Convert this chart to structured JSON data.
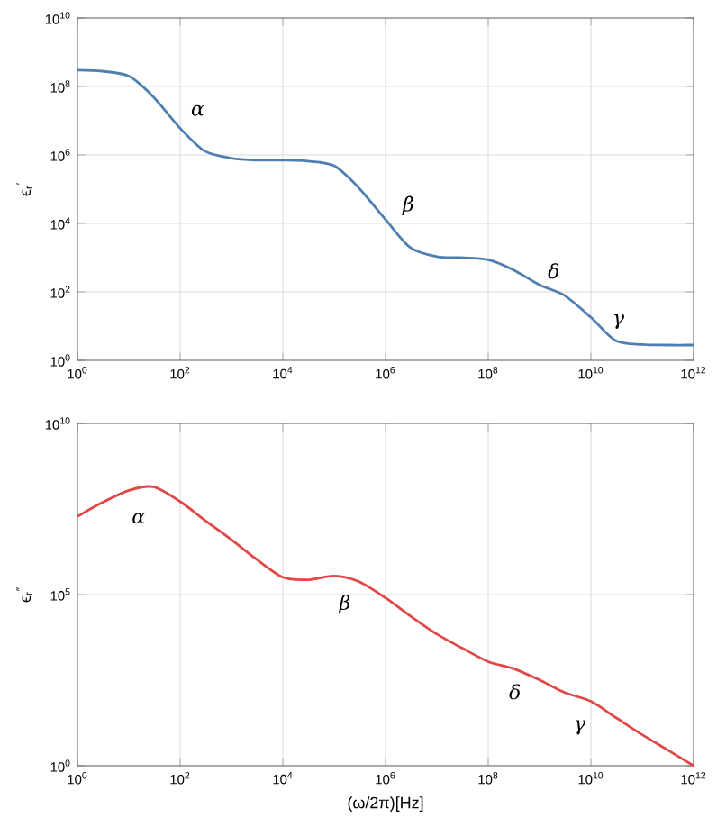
{
  "chart_data": [
    {
      "type": "line",
      "ylabel": "ϵ$_{r}$$^{′}$",
      "log": "xy",
      "grid": true,
      "xlim": [
        1,
        1000000000000.0
      ],
      "ylim": [
        1,
        10000000000.0
      ],
      "xticks": [
        {
          "value": 1,
          "label": "10$^{0}$"
        },
        {
          "value": 100.0,
          "label": "10$^{2}$"
        },
        {
          "value": 10000.0,
          "label": "10$^{4}$"
        },
        {
          "value": 1000000.0,
          "label": "10$^{6}$"
        },
        {
          "value": 100000000.0,
          "label": "10$^{8}$"
        },
        {
          "value": 10000000000.0,
          "label": "10$^{10}$"
        },
        {
          "value": 1000000000000.0,
          "label": "10$^{12}$"
        }
      ],
      "yticks": [
        {
          "value": 1,
          "label": "10$^{0}$"
        },
        {
          "value": 100.0,
          "label": "10$^{2}$"
        },
        {
          "value": 10000.0,
          "label": "10$^{4}$"
        },
        {
          "value": 1000000.0,
          "label": "10$^{6}$"
        },
        {
          "value": 100000000.0,
          "label": "10$^{8}$"
        },
        {
          "value": 10000000000.0,
          "label": "10$^{10}$"
        }
      ],
      "x": [
        1,
        3,
        10,
        30,
        100.0,
        300.0,
        1000.0,
        3000.0,
        10000.0,
        30000.0,
        100000.0,
        300000.0,
        1000000.0,
        3000000.0,
        10000000.0,
        30000000.0,
        100000000.0,
        300000000.0,
        1000000000.0,
        3000000000.0,
        10000000000.0,
        30000000000.0,
        100000000000.0,
        300000000000.0,
        1000000000000.0
      ],
      "series": [
        {
          "color": "#4f7fb0",
          "values": [
            300000000.0,
            280000000.0,
            200000000.0,
            50000000.0,
            6000000.0,
            1300000.0,
            800000.0,
            700000.0,
            700000.0,
            660000.0,
            480000.0,
            110000.0,
            13000.0,
            2000.0,
            1070.0,
            1000.0,
            870,
            450,
            160,
            80,
            18,
            3.8,
            2.9,
            2.8,
            2.8
          ]
        }
      ],
      "annotations": [
        "α",
        "β",
        "δ",
        "γ"
      ]
    },
    {
      "type": "line",
      "ylabel": "ϵ$_{r}$$^{″}$",
      "xlabel": "(ω/2π)[Hz]",
      "log": "xy",
      "grid": true,
      "xlim": [
        1,
        1000000000000.0
      ],
      "ylim": [
        1,
        10000000000.0
      ],
      "xticks": [
        {
          "value": 1,
          "label": "10$^{0}$"
        },
        {
          "value": 100.0,
          "label": "10$^{2}$"
        },
        {
          "value": 10000.0,
          "label": "10$^{4}$"
        },
        {
          "value": 1000000.0,
          "label": "10$^{6}$"
        },
        {
          "value": 100000000.0,
          "label": "10$^{8}$"
        },
        {
          "value": 10000000000.0,
          "label": "10$^{10}$"
        },
        {
          "value": 1000000000000.0,
          "label": "10$^{12}$"
        }
      ],
      "yticks": [
        {
          "value": 1,
          "label": "10$^{0}$"
        },
        {
          "value": 100000.0,
          "label": "10$^{5}$"
        },
        {
          "value": 10000000000.0,
          "label": "10$^{10}$"
        }
      ],
      "x": [
        1,
        3,
        10,
        30,
        100.0,
        300.0,
        1000.0,
        3000.0,
        10000.0,
        30000.0,
        100000.0,
        300000.0,
        1000000.0,
        3000000.0,
        10000000.0,
        30000000.0,
        100000000.0,
        300000000.0,
        1000000000.0,
        3000000000.0,
        10000000000.0,
        30000000000.0,
        100000000000.0,
        300000000000.0,
        1000000000000.0
      ],
      "series": [
        {
          "color": "#e04848",
          "values": [
            19000000.0,
            48000000.0,
            110000000.0,
            140000000.0,
            52000000.0,
            15000000.0,
            4000000.0,
            1100000.0,
            320000.0,
            270000.0,
            350000.0,
            240000.0,
            80000.0,
            24000.0,
            7000.0,
            2800.0,
            1100.0,
            700,
            320,
            140,
            76,
            26,
            8,
            3,
            1
          ]
        }
      ],
      "annotations": [
        "α",
        "β",
        "δ",
        "γ"
      ]
    }
  ]
}
